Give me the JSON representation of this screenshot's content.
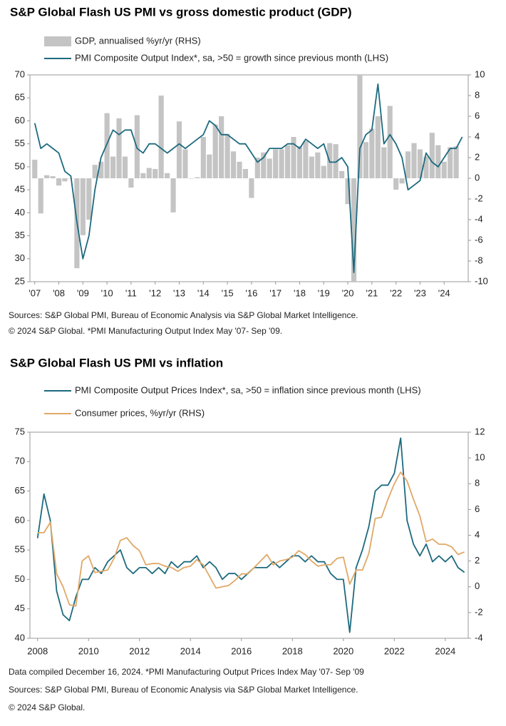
{
  "chart_data": [
    {
      "type": "combo",
      "title": "S&P Global Flash US PMI vs gross domestic product (GDP)",
      "notes": [
        "Sources: S&P Global PMI, Bureau of Economic Analysis via S&P Global Market Intelligence.",
        "© 2024 S&P Global.  *PMI Manufacturing Output Index May '07- Sep '09."
      ],
      "xlim": [
        2006.8,
        2025
      ],
      "xticks": [
        {
          "value": 2007,
          "label": "'07"
        },
        {
          "value": 2008,
          "label": "'08"
        },
        {
          "value": 2009,
          "label": "'09"
        },
        {
          "value": 2010,
          "label": "'10"
        },
        {
          "value": 2011,
          "label": "'11"
        },
        {
          "value": 2012,
          "label": "'12"
        },
        {
          "value": 2013,
          "label": "'13"
        },
        {
          "value": 2014,
          "label": "'14"
        },
        {
          "value": 2015,
          "label": "'15"
        },
        {
          "value": 2016,
          "label": "'16"
        },
        {
          "value": 2017,
          "label": "'17"
        },
        {
          "value": 2018,
          "label": "'18"
        },
        {
          "value": 2019,
          "label": "'19"
        },
        {
          "value": 2020,
          "label": "'20"
        },
        {
          "value": 2021,
          "label": "'21"
        },
        {
          "value": 2022,
          "label": "'22"
        },
        {
          "value": 2023,
          "label": "'23"
        },
        {
          "value": 2024,
          "label": "'24"
        }
      ],
      "ylim": [
        25,
        70
      ],
      "yticks": [
        25,
        30,
        35,
        40,
        45,
        50,
        55,
        60,
        65,
        70
      ],
      "y2lim": [
        -10,
        10
      ],
      "y2ticks": [
        -10,
        -8,
        -6,
        -4,
        -2,
        0,
        2,
        4,
        6,
        8,
        10
      ],
      "x": [
        2007,
        2007.25,
        2007.5,
        2007.75,
        2008,
        2008.25,
        2008.5,
        2008.75,
        2009,
        2009.25,
        2009.5,
        2009.75,
        2010,
        2010.25,
        2010.5,
        2010.75,
        2011,
        2011.25,
        2011.5,
        2011.75,
        2012,
        2012.25,
        2012.5,
        2012.75,
        2013,
        2013.25,
        2013.5,
        2013.75,
        2014,
        2014.25,
        2014.5,
        2014.75,
        2015,
        2015.25,
        2015.5,
        2015.75,
        2016,
        2016.25,
        2016.5,
        2016.75,
        2017,
        2017.25,
        2017.5,
        2017.75,
        2018,
        2018.25,
        2018.5,
        2018.75,
        2019,
        2019.25,
        2019.5,
        2019.75,
        2020,
        2020.25,
        2020.5,
        2020.75,
        2021,
        2021.25,
        2021.5,
        2021.75,
        2022,
        2022.25,
        2022.5,
        2022.75,
        2023,
        2023.25,
        2023.5,
        2023.75,
        2024,
        2024.25,
        2024.5,
        2024.75
      ],
      "series": [
        {
          "name": "GDP, annualised %yr/yr (RHS)",
          "type": "bar",
          "axis": "y2",
          "color": "#c4c4c4",
          "values": [
            1.8,
            -3.4,
            0.3,
            0.2,
            -0.7,
            -0.3,
            0.0,
            -8.7,
            -5.5,
            -4.0,
            1.3,
            1.6,
            6.3,
            2.1,
            5.8,
            2.1,
            -0.9,
            6.1,
            0.5,
            1.0,
            0.9,
            8.0,
            0.5,
            -3.3,
            5.5,
            2.8,
            0.0,
            0.1,
            4.0,
            2.3,
            5.2,
            6.0,
            4.3,
            2.6,
            1.6,
            0.9,
            -1.9,
            2.0,
            2.5,
            1.9,
            2.8,
            2.8,
            3.2,
            4.0,
            3.1,
            3.6,
            2.1,
            2.5,
            1.2,
            3.4,
            3.3,
            0.7,
            -2.5,
            -10,
            10,
            3.5,
            4.8,
            6.0,
            3.0,
            7.0,
            -1.1,
            -0.5,
            2.6,
            3.4,
            2.8,
            2.1,
            4.4,
            3.2,
            1.6,
            3.0,
            3.1,
            null
          ]
        },
        {
          "name": "PMI Composite Output Index*, sa, >50 = growth since previous month (LHS)",
          "type": "line",
          "color": "#1d6a7e",
          "values": [
            59.5,
            54,
            55,
            54,
            53,
            49,
            48,
            38,
            30,
            35,
            45,
            52,
            55,
            58,
            57,
            58,
            58,
            54,
            53,
            55,
            55,
            54,
            53,
            54,
            55,
            54,
            55,
            56,
            57,
            60,
            59,
            57,
            57,
            56,
            55,
            55,
            53,
            51,
            52,
            54,
            54,
            54,
            55,
            55,
            54,
            56,
            55,
            54,
            55,
            51,
            51,
            52,
            50,
            27,
            54,
            57,
            58,
            68,
            55,
            57,
            55,
            52,
            45,
            46,
            47,
            53,
            51,
            50,
            52,
            54,
            54,
            56.5
          ]
        }
      ]
    },
    {
      "type": "combo",
      "title": "S&P Global Flash US PMI vs inflation",
      "notes": [
        "Data compiled December 16, 2024.  *PMI Manufacturing Output Prices Index May '07- Sep '09",
        "Sources: S&P Global PMI, Bureau of Economic Analysis via S&P Global Market Intelligence.",
        "© 2024 S&P Global."
      ],
      "xlim": [
        2007.7,
        2024.9
      ],
      "xticks": [
        2008,
        2010,
        2012,
        2014,
        2016,
        2018,
        2020,
        2022,
        2024
      ],
      "ylim": [
        40,
        75
      ],
      "yticks": [
        40,
        45,
        50,
        55,
        60,
        65,
        70,
        75
      ],
      "y2lim": [
        -4,
        12
      ],
      "y2ticks": [
        -4,
        -2,
        0,
        2,
        4,
        6,
        8,
        10,
        12
      ],
      "x": [
        2008,
        2008.25,
        2008.5,
        2008.75,
        2009,
        2009.25,
        2009.5,
        2009.75,
        2010,
        2010.25,
        2010.5,
        2010.75,
        2011,
        2011.25,
        2011.5,
        2011.75,
        2012,
        2012.25,
        2012.5,
        2012.75,
        2013,
        2013.25,
        2013.5,
        2013.75,
        2014,
        2014.25,
        2014.5,
        2014.75,
        2015,
        2015.25,
        2015.5,
        2015.75,
        2016,
        2016.25,
        2016.5,
        2016.75,
        2017,
        2017.25,
        2017.5,
        2017.75,
        2018,
        2018.25,
        2018.5,
        2018.75,
        2019,
        2019.25,
        2019.5,
        2019.75,
        2020,
        2020.25,
        2020.5,
        2020.75,
        2021,
        2021.25,
        2021.5,
        2021.75,
        2022,
        2022.25,
        2022.5,
        2022.75,
        2023,
        2023.25,
        2023.5,
        2023.75,
        2024,
        2024.25,
        2024.5,
        2024.75
      ],
      "series": [
        {
          "name": "PMI Composite Output Prices Index*, sa, >50 = inflation since previous month (LHS)",
          "type": "line",
          "color": "#1d6a7e",
          "values": [
            57,
            64.5,
            60,
            48,
            44,
            43,
            47,
            50,
            50,
            52,
            51,
            53,
            54,
            55,
            52,
            51,
            52,
            52,
            51,
            52,
            51,
            53,
            52,
            53,
            53,
            54,
            52,
            53,
            52,
            50,
            51,
            51,
            50,
            51,
            52,
            52,
            52,
            53,
            52,
            53,
            54,
            54,
            53,
            54,
            53,
            53,
            51,
            50,
            50,
            41,
            52,
            55,
            59,
            65,
            66,
            66,
            68,
            74,
            60,
            56,
            54,
            56,
            53,
            54,
            53,
            54,
            52,
            51.2
          ]
        },
        {
          "name": "Consumer prices, %yr/yr (RHS)",
          "type": "line",
          "axis": "y2",
          "color": "#e0a867",
          "values": [
            4.2,
            4.2,
            5.0,
            1.0,
            0.0,
            -1.4,
            -1.5,
            2.0,
            2.4,
            1.1,
            1.2,
            1.3,
            2.2,
            3.6,
            3.8,
            3.2,
            2.8,
            1.7,
            1.8,
            1.8,
            1.6,
            1.5,
            1.2,
            1.5,
            1.6,
            2.1,
            1.7,
            0.8,
            -0.1,
            0.0,
            0.1,
            0.5,
            1.0,
            1.0,
            1.5,
            2.0,
            2.5,
            1.7,
            2.0,
            2.1,
            2.3,
            2.8,
            2.5,
            2.0,
            1.6,
            1.7,
            1.7,
            2.2,
            2.3,
            0.2,
            1.3,
            1.3,
            2.6,
            5.3,
            5.4,
            6.8,
            8.0,
            8.9,
            8.2,
            6.8,
            5.5,
            3.5,
            3.7,
            3.3,
            3.3,
            3.1,
            2.5,
            2.7
          ]
        }
      ]
    }
  ]
}
